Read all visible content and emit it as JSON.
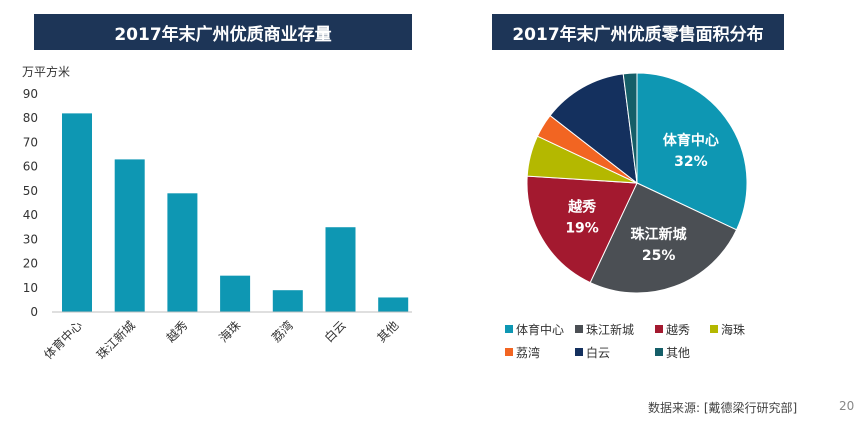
{
  "chart_data": [
    {
      "type": "bar",
      "title": "2017年末广州优质商业存量",
      "ylabel": "万平方米",
      "xlabel": "",
      "categories": [
        "体育中心",
        "珠江新城",
        "越秀",
        "海珠",
        "荔湾",
        "白云",
        "其他"
      ],
      "values": [
        82,
        63,
        49,
        15,
        9,
        35,
        6
      ],
      "ylim": [
        0,
        90
      ],
      "yticks": [
        "0",
        "10",
        "20",
        "30",
        "40",
        "50",
        "60",
        "70",
        "80",
        "90"
      ],
      "bar_color": "#0e97b3",
      "grid": false,
      "legend": "none"
    },
    {
      "type": "pie",
      "title": "2017年末广州优质零售面积分布",
      "slices": [
        {
          "name": "体育中心",
          "value": 32,
          "label": "32%",
          "color": "#0e97b3"
        },
        {
          "name": "珠江新城",
          "value": 25,
          "label": "25%",
          "color": "#4b4f54"
        },
        {
          "name": "越秀",
          "value": 19,
          "label": "19%",
          "color": "#a3192f"
        },
        {
          "name": "海珠",
          "value": 6,
          "label": "",
          "color": "#b4b800"
        },
        {
          "name": "荔湾",
          "value": 3.5,
          "label": "",
          "color": "#f26522"
        },
        {
          "name": "白云",
          "value": 12.5,
          "label": "",
          "color": "#14305e"
        },
        {
          "name": "其他",
          "value": 2,
          "label": "",
          "color": "#155e68"
        }
      ],
      "legend": "bottom"
    }
  ],
  "footer": {
    "source": "数据来源: [戴德梁行研究部]",
    "page_number": "20"
  }
}
